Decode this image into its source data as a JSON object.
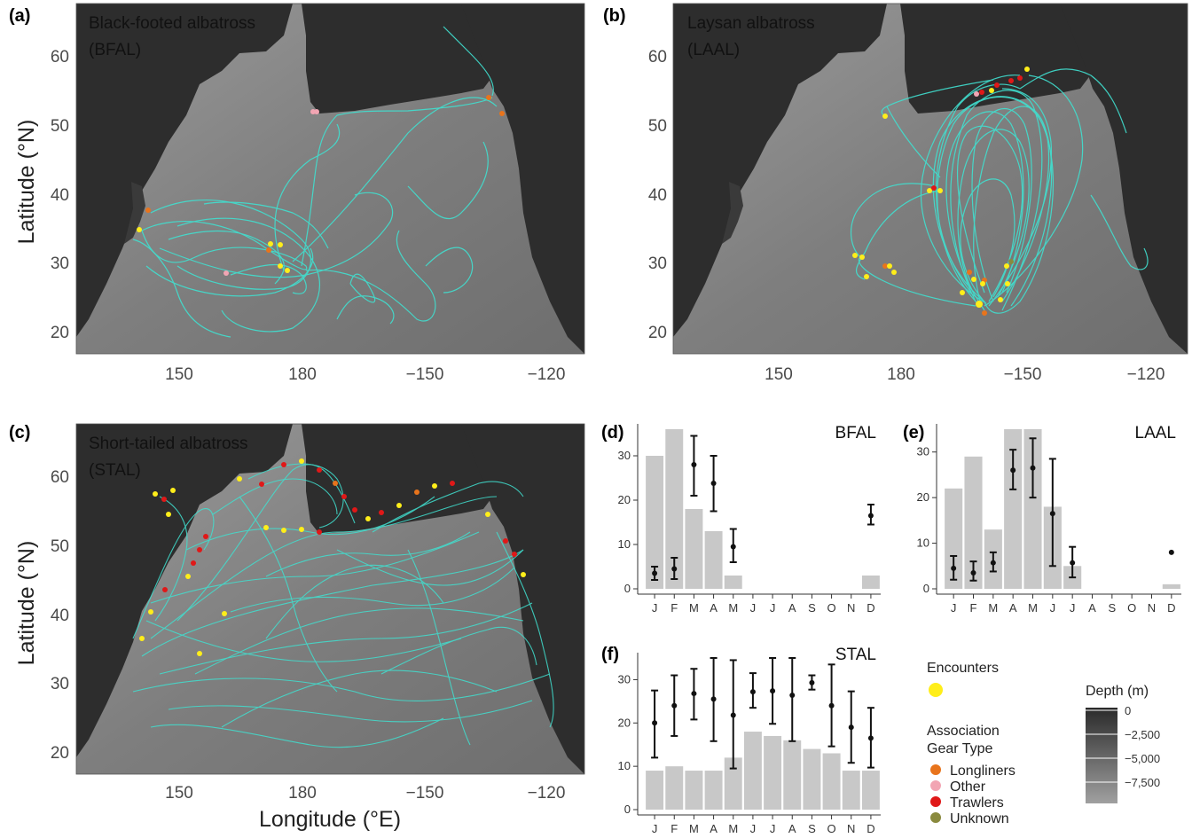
{
  "maps": [
    {
      "id": "a",
      "panel": "(a)",
      "title_line1": "Black-footed albatross",
      "title_line2": "(BFAL)",
      "xticks": [
        "150",
        "180",
        "−150",
        "−120"
      ],
      "yticks": [
        "60",
        "50",
        "40",
        "30",
        "20"
      ]
    },
    {
      "id": "b",
      "panel": "(b)",
      "title_line1": "Laysan albatross",
      "title_line2": "(LAAL)",
      "xticks": [
        "150",
        "180",
        "−150",
        "−120"
      ],
      "yticks": [
        "60",
        "50",
        "40",
        "30",
        "20"
      ]
    },
    {
      "id": "c",
      "panel": "(c)",
      "title_line1": "Short-tailed albatross",
      "title_line2": "(STAL)",
      "xticks": [
        "150",
        "180",
        "−150",
        "−120"
      ],
      "yticks": [
        "60",
        "50",
        "40",
        "30",
        "20"
      ]
    }
  ],
  "axis_titles": {
    "latitude": "Latitude (°N)",
    "longitude": "Longitude (°E)"
  },
  "chart_data": [
    {
      "type": "bar",
      "panel": "(d)",
      "species": "BFAL",
      "categories": [
        "J",
        "F",
        "M",
        "A",
        "M",
        "J",
        "J",
        "A",
        "S",
        "O",
        "N",
        "D"
      ],
      "values": [
        30,
        36,
        18,
        13,
        3,
        0,
        0,
        0,
        0,
        0,
        0,
        3
      ],
      "points": [
        3.5,
        4.5,
        28,
        23.8,
        9.5,
        null,
        null,
        null,
        null,
        null,
        null,
        16.5
      ],
      "err_low": [
        2,
        2.2,
        21,
        17.5,
        6,
        null,
        null,
        null,
        null,
        null,
        null,
        14.5
      ],
      "err_high": [
        5,
        7,
        34.5,
        30,
        13.5,
        null,
        null,
        null,
        null,
        null,
        null,
        19
      ],
      "yticks": [
        0,
        10,
        20,
        30
      ],
      "ylim": [
        0,
        36
      ]
    },
    {
      "type": "bar",
      "panel": "(e)",
      "species": "LAAL",
      "categories": [
        "J",
        "F",
        "M",
        "A",
        "M",
        "J",
        "J",
        "A",
        "S",
        "O",
        "N",
        "D"
      ],
      "values": [
        22,
        29,
        13,
        35,
        35,
        18,
        5,
        0,
        0,
        0,
        0,
        1
      ],
      "points": [
        4.5,
        3.5,
        5.7,
        26,
        26.5,
        16.5,
        5.7,
        null,
        null,
        null,
        null,
        8
      ],
      "err_low": [
        2,
        1.8,
        3.8,
        21.8,
        20,
        5,
        2.5,
        null,
        null,
        null,
        null,
        null
      ],
      "err_high": [
        7.2,
        6,
        8,
        30.5,
        33,
        28.5,
        9.2,
        null,
        null,
        null,
        null,
        null
      ],
      "yticks": [
        0,
        10,
        20,
        30
      ],
      "ylim": [
        0,
        35
      ]
    },
    {
      "type": "bar",
      "panel": "(f)",
      "species": "STAL",
      "categories": [
        "J",
        "F",
        "M",
        "A",
        "M",
        "J",
        "J",
        "A",
        "S",
        "O",
        "N",
        "D"
      ],
      "values": [
        9,
        10,
        9,
        9,
        12,
        18,
        17,
        16,
        14,
        13,
        9,
        9
      ],
      "points": [
        20,
        24,
        26.8,
        25.5,
        21.8,
        27.2,
        27.4,
        26.4,
        29.3,
        24,
        19,
        16.5
      ],
      "err_low": [
        12,
        17,
        20.8,
        15.8,
        9.5,
        23.5,
        19.8,
        15.8,
        27.7,
        14.6,
        10.8,
        9.7
      ],
      "err_high": [
        27.5,
        31,
        32.5,
        35,
        34.5,
        31.5,
        35,
        35,
        31,
        33.5,
        27.3,
        23.5
      ],
      "yticks": [
        0,
        10,
        20,
        30
      ],
      "ylim": [
        0,
        35
      ]
    }
  ],
  "legend": {
    "encounters_title": "Encounters",
    "association_title_line1": "Association",
    "association_title_line2": "Gear Type",
    "gear": [
      {
        "label": "Longliners",
        "color": "#e8741c"
      },
      {
        "label": "Other",
        "color": "#f2a5b3"
      },
      {
        "label": "Trawlers",
        "color": "#e01818"
      },
      {
        "label": "Unknown",
        "color": "#8a8a3e"
      }
    ],
    "encounter_color": "#ffee1a",
    "depth_title": "Depth (m)",
    "depth_ticks": [
      "0",
      "−2,500",
      "−5,000",
      "−7,500"
    ]
  },
  "colors": {
    "track": "#40e0d0",
    "land": "#2b2b2b",
    "ocean": "#8a8a8a",
    "bar": "#c8c8c8"
  }
}
